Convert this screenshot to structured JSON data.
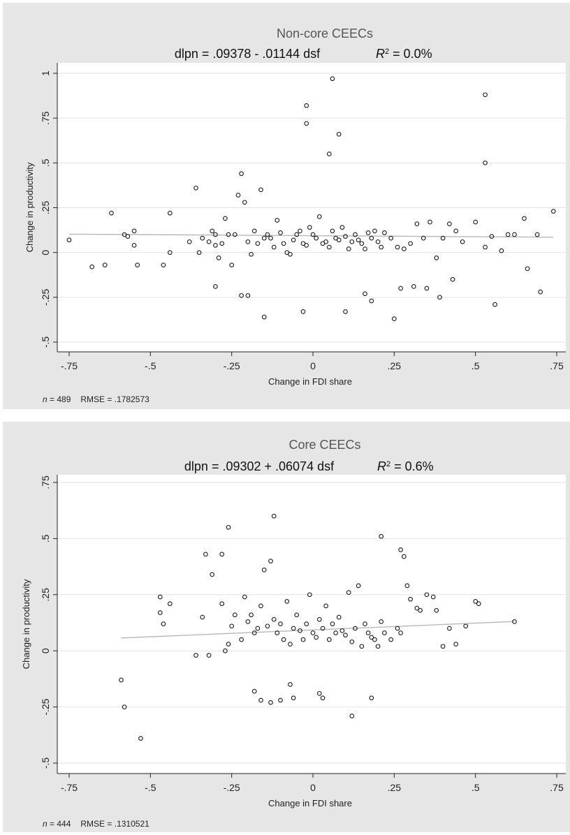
{
  "chart_data": [
    {
      "type": "scatter",
      "title": "Non-core CEECs",
      "equation": {
        "lhs": "dlpn = .09378 - .01144 dsf",
        "r2_symbol": "R",
        "r2_sup": "2",
        "r2_value": " = 0.0%"
      },
      "xlabel": "Change in FDI share",
      "ylabel": "Change in productivity",
      "xlim": [
        -0.75,
        0.75
      ],
      "ylim": [
        -0.5,
        1.0
      ],
      "xticks": [
        -0.75,
        -0.5,
        -0.25,
        0,
        0.25,
        0.5,
        0.75
      ],
      "xtick_labels": [
        "-.75",
        "-.5",
        "-.25",
        "0",
        ".25",
        ".5",
        ".75"
      ],
      "yticks": [
        -0.5,
        -0.25,
        0,
        0.25,
        0.5,
        0.75,
        1.0
      ],
      "ytick_labels": [
        "-.5",
        "-.25",
        "0",
        ".25",
        ".5",
        ".75",
        "1"
      ],
      "grid": true,
      "fit": {
        "intercept": 0.09378,
        "slope": -0.01144
      },
      "footer": {
        "n_label": "n",
        "n_value": " = 489",
        "rmse": "RMSE = .1782573"
      },
      "x": [
        -0.75,
        -0.68,
        -0.64,
        -0.62,
        -0.58,
        -0.57,
        -0.55,
        -0.55,
        -0.54,
        -0.46,
        -0.44,
        -0.44,
        -0.38,
        -0.36,
        -0.35,
        -0.34,
        -0.32,
        -0.31,
        -0.3,
        -0.3,
        -0.29,
        -0.28,
        -0.27,
        -0.26,
        -0.25,
        -0.24,
        -0.23,
        -0.22,
        -0.21,
        -0.2,
        -0.19,
        -0.18,
        -0.17,
        -0.16,
        -0.15,
        -0.14,
        -0.13,
        -0.12,
        -0.11,
        -0.1,
        -0.09,
        -0.08,
        -0.07,
        -0.06,
        -0.05,
        -0.04,
        -0.03,
        -0.02,
        -0.01,
        0.0,
        0.01,
        0.02,
        0.03,
        0.04,
        0.05,
        0.06,
        0.07,
        0.08,
        0.09,
        0.1,
        0.11,
        0.12,
        0.13,
        0.14,
        0.15,
        0.16,
        0.17,
        0.18,
        0.19,
        0.2,
        0.21,
        0.22,
        0.24,
        0.26,
        0.28,
        0.3,
        0.32,
        0.34,
        0.36,
        0.38,
        0.4,
        0.42,
        0.44,
        0.46,
        0.5,
        0.53,
        0.55,
        0.58,
        0.6,
        0.62,
        0.65,
        0.69,
        0.74,
        -0.02,
        -0.02,
        0.06,
        0.53,
        0.53,
        0.05,
        0.08,
        -0.03,
        -0.22,
        -0.3,
        -0.15,
        -0.2,
        0.1,
        0.18,
        0.16,
        0.35,
        0.31,
        0.25,
        0.27,
        0.39,
        0.43,
        0.56,
        0.66,
        0.7
      ],
      "y": [
        0.07,
        -0.08,
        -0.07,
        0.22,
        0.1,
        0.09,
        0.12,
        0.04,
        -0.07,
        -0.07,
        0.22,
        0.0,
        0.06,
        0.36,
        0.0,
        0.08,
        0.06,
        0.12,
        0.1,
        0.04,
        -0.03,
        0.05,
        0.19,
        0.1,
        -0.07,
        0.1,
        0.32,
        0.44,
        0.28,
        0.06,
        -0.01,
        0.12,
        0.05,
        0.35,
        0.08,
        0.1,
        0.08,
        0.03,
        0.18,
        0.11,
        0.05,
        0.0,
        -0.01,
        0.07,
        0.1,
        0.12,
        0.05,
        0.04,
        0.14,
        0.1,
        0.08,
        0.2,
        0.05,
        0.06,
        0.03,
        0.12,
        0.08,
        0.07,
        0.14,
        0.09,
        0.02,
        0.06,
        0.1,
        0.07,
        0.05,
        0.02,
        0.11,
        0.08,
        0.12,
        0.06,
        0.03,
        0.11,
        0.08,
        0.03,
        0.02,
        0.05,
        0.16,
        0.08,
        0.17,
        -0.03,
        0.08,
        0.16,
        0.12,
        0.06,
        0.17,
        0.03,
        0.09,
        0.01,
        0.1,
        0.1,
        0.19,
        0.1,
        0.23,
        0.82,
        0.72,
        0.97,
        0.88,
        0.5,
        0.55,
        0.66,
        -0.33,
        -0.24,
        -0.19,
        -0.36,
        -0.24,
        -0.33,
        -0.27,
        -0.23,
        -0.2,
        -0.19,
        -0.37,
        -0.2,
        -0.25,
        -0.15,
        -0.29,
        -0.09,
        -0.22
      ]
    },
    {
      "type": "scatter",
      "title": "Core CEECs",
      "equation": {
        "lhs": "dlpn = .09302 + .06074 dsf",
        "r2_symbol": "R",
        "r2_sup": "2",
        "r2_value": " = 0.6%"
      },
      "xlabel": "Change in FDI share",
      "ylabel": "Change in productivity",
      "xlim": [
        -0.75,
        0.75
      ],
      "ylim": [
        -0.5,
        0.75
      ],
      "xticks": [
        -0.75,
        -0.5,
        -0.25,
        0,
        0.25,
        0.5,
        0.75
      ],
      "xtick_labels": [
        "-.75",
        "-.5",
        "-.25",
        "0",
        ".25",
        ".5",
        ".75"
      ],
      "yticks": [
        -0.5,
        -0.25,
        0,
        0.25,
        0.5,
        0.75
      ],
      "ytick_labels": [
        "-.5",
        "-.25",
        "0",
        ".25",
        ".5",
        ".75"
      ],
      "grid": true,
      "fit": {
        "intercept": 0.09302,
        "slope": 0.06074
      },
      "footer": {
        "n_label": "n",
        "n_value": " = 444",
        "rmse": "RMSE = .1310521"
      },
      "x": [
        -0.59,
        -0.58,
        -0.53,
        -0.47,
        -0.47,
        -0.46,
        -0.44,
        -0.36,
        -0.34,
        -0.33,
        -0.32,
        -0.31,
        -0.28,
        -0.27,
        -0.26,
        -0.25,
        -0.24,
        -0.22,
        -0.21,
        -0.2,
        -0.19,
        -0.18,
        -0.17,
        -0.16,
        -0.15,
        -0.14,
        -0.13,
        -0.12,
        -0.11,
        -0.1,
        -0.09,
        -0.08,
        -0.07,
        -0.06,
        -0.05,
        -0.04,
        -0.03,
        -0.02,
        -0.01,
        0.0,
        0.01,
        0.02,
        0.03,
        0.04,
        0.05,
        0.06,
        0.07,
        0.08,
        0.09,
        0.1,
        0.11,
        0.12,
        0.13,
        0.14,
        0.15,
        0.16,
        0.17,
        0.18,
        0.19,
        0.2,
        0.21,
        0.22,
        0.24,
        0.26,
        0.27,
        0.28,
        0.3,
        0.32,
        0.33,
        0.35,
        0.37,
        0.38,
        0.4,
        0.42,
        0.44,
        0.47,
        0.5,
        0.51,
        0.62,
        -0.26,
        -0.28,
        -0.12,
        0.21,
        0.27,
        0.29,
        -0.18,
        -0.1,
        -0.16,
        0.18,
        0.12,
        0.03,
        0.02,
        -0.06,
        -0.13,
        -0.07
      ],
      "y": [
        -0.13,
        -0.25,
        -0.39,
        0.24,
        0.17,
        0.12,
        0.21,
        -0.02,
        0.15,
        0.43,
        -0.02,
        0.34,
        0.43,
        0.0,
        0.03,
        0.11,
        0.16,
        0.05,
        0.24,
        0.13,
        0.16,
        0.08,
        0.1,
        0.2,
        0.36,
        0.11,
        0.4,
        0.14,
        0.08,
        0.12,
        0.05,
        0.22,
        0.03,
        0.1,
        0.16,
        0.09,
        0.05,
        0.12,
        0.25,
        0.08,
        0.06,
        0.14,
        0.1,
        0.2,
        0.05,
        0.12,
        0.08,
        0.15,
        0.09,
        0.07,
        0.26,
        0.04,
        0.1,
        0.29,
        0.02,
        0.12,
        0.08,
        0.06,
        0.05,
        0.02,
        0.13,
        0.08,
        0.05,
        0.1,
        0.08,
        0.42,
        0.23,
        0.19,
        0.18,
        0.25,
        0.24,
        0.18,
        0.02,
        0.1,
        0.03,
        0.11,
        0.22,
        0.21,
        0.13,
        0.55,
        0.21,
        0.6,
        0.51,
        0.45,
        0.29,
        -0.18,
        -0.22,
        -0.22,
        -0.21,
        -0.29,
        -0.21,
        -0.19,
        -0.21,
        -0.23,
        -0.15
      ]
    }
  ]
}
